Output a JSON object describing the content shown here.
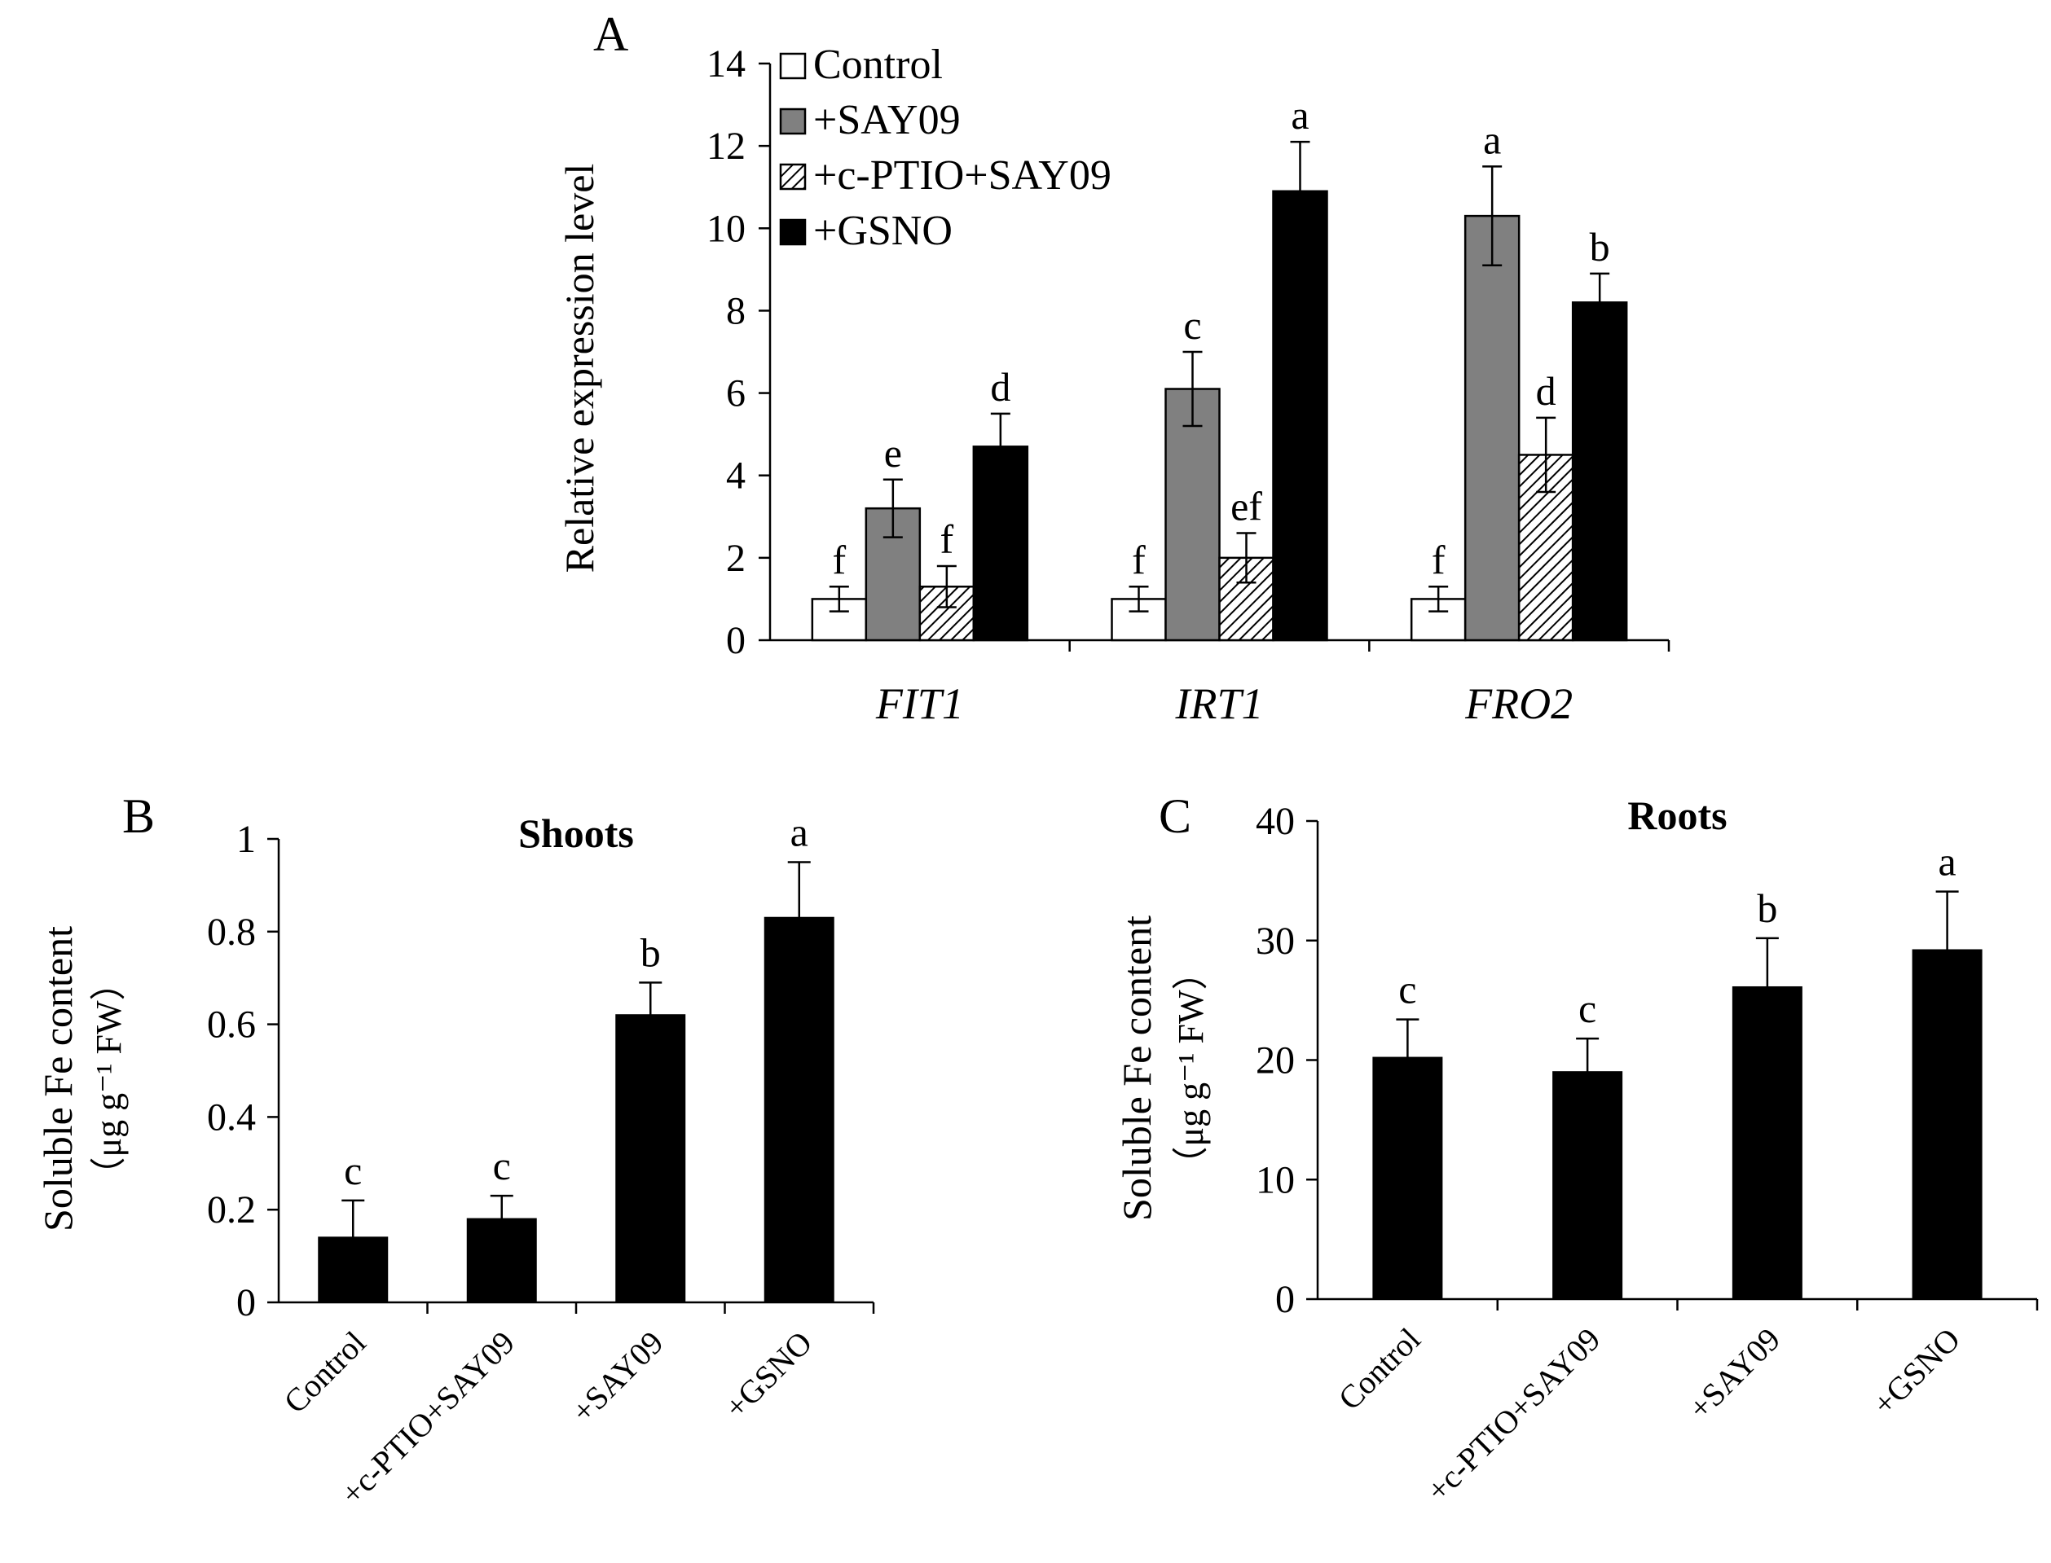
{
  "panels": {
    "A": "A",
    "B": "B",
    "C": "C"
  },
  "chart_data": [
    {
      "id": "A",
      "type": "bar",
      "title": "",
      "xlabel": "",
      "ylabel": "Relative expression level",
      "ylim": [
        0,
        14
      ],
      "yticks": [
        0,
        2,
        4,
        6,
        8,
        10,
        12,
        14
      ],
      "categories": [
        "FIT1",
        "IRT1",
        "FRO2"
      ],
      "legend_position": "top-left",
      "series": [
        {
          "name": "Control",
          "style": "white",
          "values": [
            1.0,
            1.0,
            1.0
          ],
          "errors": [
            0.3,
            0.3,
            0.3
          ],
          "letters": [
            "f",
            "f",
            "f"
          ]
        },
        {
          "name": "+SAY09",
          "style": "gray",
          "values": [
            3.2,
            6.1,
            10.3
          ],
          "errors": [
            0.7,
            0.9,
            1.2
          ],
          "letters": [
            "e",
            "c",
            "a"
          ]
        },
        {
          "name": "+c-PTIO+SAY09",
          "style": "hatched",
          "values": [
            1.3,
            2.0,
            4.5
          ],
          "errors": [
            0.5,
            0.6,
            0.9
          ],
          "letters": [
            "f",
            "ef",
            "d"
          ]
        },
        {
          "name": "+GSNO",
          "style": "black",
          "values": [
            4.7,
            10.9,
            8.2
          ],
          "errors": [
            0.8,
            1.2,
            0.7
          ],
          "letters": [
            "d",
            "a",
            "b"
          ]
        }
      ],
      "colors": {
        "white": "#ffffff",
        "gray": "#808080",
        "black": "#000000"
      }
    },
    {
      "id": "B",
      "type": "bar",
      "title": "Shoots",
      "xlabel": "",
      "ylabel": "Soluble Fe content",
      "ylabel2": "（μg g⁻¹ FW）",
      "ylim": [
        0,
        1
      ],
      "yticks": [
        0,
        0.2,
        0.4,
        0.6,
        0.8,
        1
      ],
      "ytick_labels": [
        "0",
        "0.2",
        "0.4",
        "0.6",
        "0.8",
        "1"
      ],
      "categories": [
        "Control",
        "+c-PTIO+SAY09",
        "+SAY09",
        "+GSNO"
      ],
      "values": [
        0.14,
        0.18,
        0.62,
        0.83
      ],
      "errors": [
        0.08,
        0.05,
        0.07,
        0.12
      ],
      "letters": [
        "c",
        "c",
        "b",
        "a"
      ],
      "bar_color": "#000000"
    },
    {
      "id": "C",
      "type": "bar",
      "title": "Roots",
      "xlabel": "",
      "ylabel": "Soluble Fe content",
      "ylabel2": "（μg g⁻¹ FW）",
      "ylim": [
        0,
        40
      ],
      "yticks": [
        0,
        10,
        20,
        30,
        40
      ],
      "ytick_labels": [
        "0",
        "10",
        "20",
        "30",
        "40"
      ],
      "categories": [
        "Control",
        "+c-PTIO+SAY09",
        "+SAY09",
        "+GSNO"
      ],
      "values": [
        20.2,
        19.0,
        26.1,
        29.2
      ],
      "errors": [
        3.2,
        2.8,
        4.1,
        4.9
      ],
      "letters": [
        "c",
        "c",
        "b",
        "a"
      ],
      "bar_color": "#000000"
    }
  ]
}
